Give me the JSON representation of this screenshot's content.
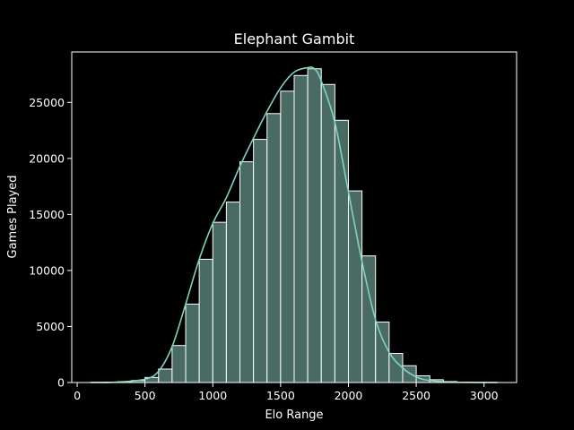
{
  "chart_data": {
    "type": "bar",
    "title": "Elephant Gambit",
    "xlabel": "Elo Range",
    "ylabel": "Games Played",
    "xlim": [
      -40,
      3240
    ],
    "ylim": [
      0,
      29500
    ],
    "xticks": [
      0,
      500,
      1000,
      1500,
      2000,
      2500,
      3000
    ],
    "yticks": [
      0,
      5000,
      10000,
      15000,
      20000,
      25000
    ],
    "bin_width": 100,
    "bins": [
      {
        "x_start": 100,
        "count": 20
      },
      {
        "x_start": 200,
        "count": 40
      },
      {
        "x_start": 300,
        "count": 80
      },
      {
        "x_start": 400,
        "count": 180
      },
      {
        "x_start": 500,
        "count": 450
      },
      {
        "x_start": 600,
        "count": 1200
      },
      {
        "x_start": 700,
        "count": 3300
      },
      {
        "x_start": 800,
        "count": 7000
      },
      {
        "x_start": 900,
        "count": 11000
      },
      {
        "x_start": 1000,
        "count": 14300
      },
      {
        "x_start": 1100,
        "count": 16100
      },
      {
        "x_start": 1200,
        "count": 19700
      },
      {
        "x_start": 1300,
        "count": 21700
      },
      {
        "x_start": 1400,
        "count": 24000
      },
      {
        "x_start": 1500,
        "count": 26000
      },
      {
        "x_start": 1600,
        "count": 27400
      },
      {
        "x_start": 1700,
        "count": 28000
      },
      {
        "x_start": 1800,
        "count": 26600
      },
      {
        "x_start": 1900,
        "count": 23400
      },
      {
        "x_start": 2000,
        "count": 17100
      },
      {
        "x_start": 2100,
        "count": 11300
      },
      {
        "x_start": 2200,
        "count": 5400
      },
      {
        "x_start": 2300,
        "count": 2600
      },
      {
        "x_start": 2400,
        "count": 1500
      },
      {
        "x_start": 2500,
        "count": 600
      },
      {
        "x_start": 2600,
        "count": 250
      },
      {
        "x_start": 2700,
        "count": 90
      },
      {
        "x_start": 2800,
        "count": 40
      },
      {
        "x_start": 2900,
        "count": 20
      },
      {
        "x_start": 3000,
        "count": 10
      }
    ],
    "kde": {
      "x": [
        100,
        300,
        500,
        600,
        700,
        800,
        900,
        1000,
        1100,
        1200,
        1300,
        1400,
        1500,
        1600,
        1700,
        1750,
        1800,
        1900,
        2000,
        2100,
        2200,
        2300,
        2400,
        2500,
        2600,
        2800,
        3100
      ],
      "y": [
        0,
        40,
        300,
        1000,
        3200,
        7000,
        11000,
        14200,
        16500,
        19300,
        21800,
        24200,
        26300,
        27700,
        28100,
        28000,
        26900,
        23200,
        17000,
        10800,
        5600,
        2700,
        1300,
        500,
        180,
        30,
        0
      ]
    },
    "colors": {
      "background": "#000000",
      "bar_fill": "#4a6b63",
      "bar_edge": "#ffffff",
      "kde_line": "#7fd3c0",
      "axes": "#ffffff"
    }
  }
}
